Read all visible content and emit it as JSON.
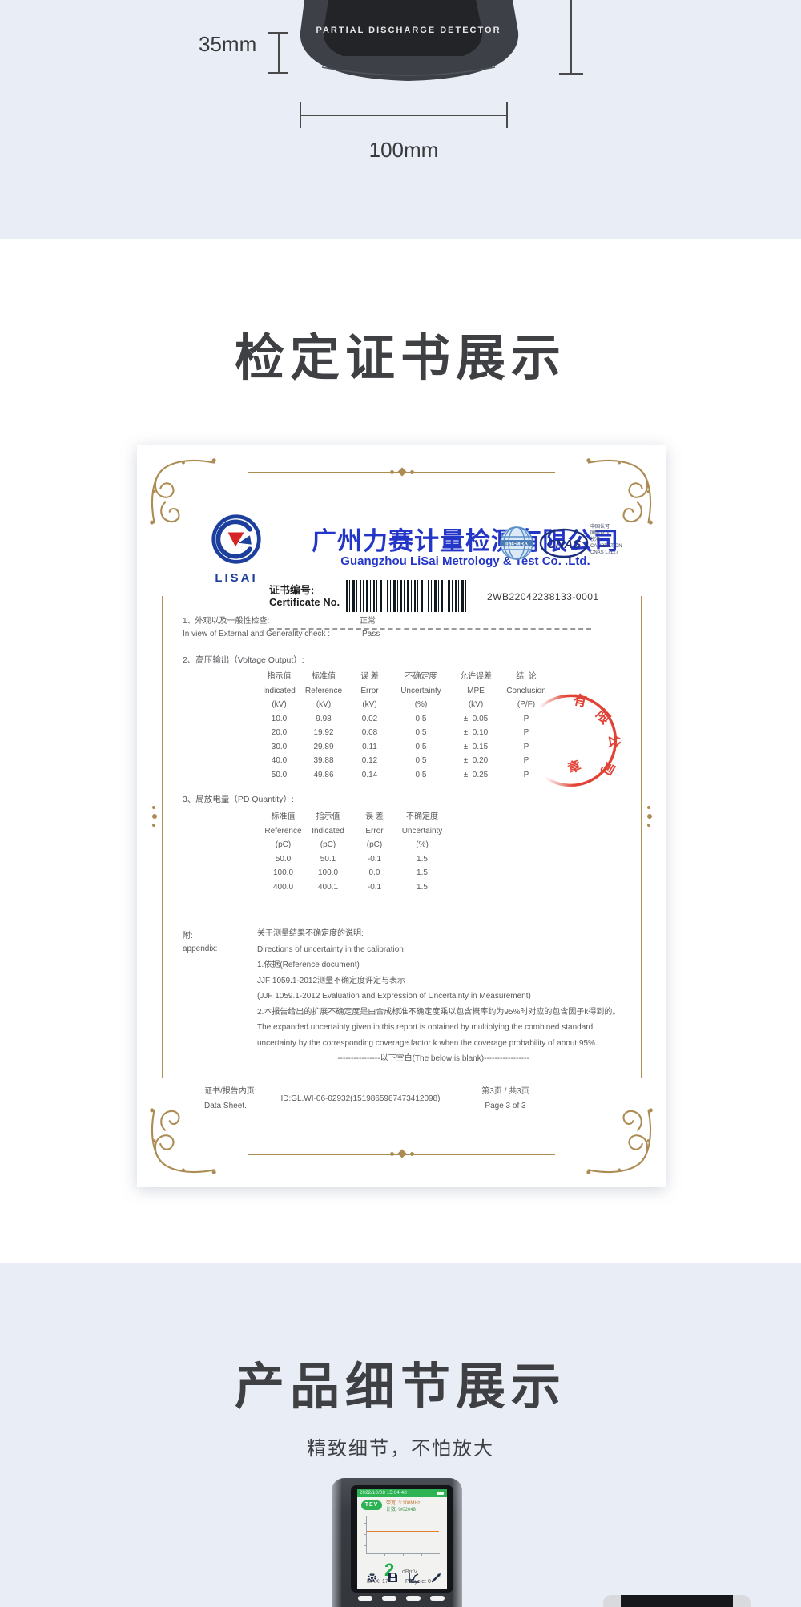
{
  "colors": {
    "section_bg": "#e9edf6",
    "accent_gold": "#ad8c54",
    "brand_blue": "#2436c7",
    "logo_blue": "#1c3f9e",
    "stamp_red": "#e03426",
    "screen_green": "#2db254",
    "orange_trace": "#e0812c",
    "title_text": "#3f4043",
    "body_text": "#5a5a5b",
    "device_dark": "#33363b"
  },
  "top_section": {
    "device_label": "PARTIAL DISCHARGE DETECTOR",
    "height_dim": "35mm",
    "width_dim": "100mm"
  },
  "cert_section": {
    "title": "检定证书展示",
    "logo_text": "LISAI",
    "company_cn": "广州力赛计量检测有限公司",
    "company_en": "Guangzhou LiSai Metrology & Test Co. .Ltd.",
    "cert_no_label_cn": "证书编号:",
    "cert_no_label_en": "Certificate No.",
    "cert_no_value": "2WB22042238133-0001",
    "ilac_label": "ilac-MRA",
    "cnas_label": "CNAS",
    "accreditation_lines": [
      "中国认可",
      "国际互认",
      "校准",
      "CALIBRATION",
      "CNAS L7127"
    ],
    "check_item_cn": "1、外观以及一般性检查:",
    "check_item_en": "In view of External and Generality check :",
    "check_result_cn": "正常",
    "check_result_en": "Pass",
    "voltage_section_title": "2、高压输出（Voltage Output）:",
    "voltage_table": {
      "headers_cn": [
        "指示值",
        "标准值",
        "误 差",
        "不确定度",
        "允许误差",
        "结  论"
      ],
      "headers_en": [
        "Indicated",
        "Reference",
        "Error",
        "Uncertainty",
        "MPE",
        "Conclusion"
      ],
      "units": [
        "(kV)",
        "(kV)",
        "(kV)",
        "(%)",
        "(kV)",
        "(P/F)"
      ],
      "rows": [
        [
          "10.0",
          "9.98",
          "0.02",
          "0.5",
          "±  0.05",
          "P"
        ],
        [
          "20.0",
          "19.92",
          "0.08",
          "0.5",
          "±  0.10",
          "P"
        ],
        [
          "30.0",
          "29.89",
          "0.11",
          "0.5",
          "±  0.15",
          "P"
        ],
        [
          "40.0",
          "39.88",
          "0.12",
          "0.5",
          "±  0.20",
          "P"
        ],
        [
          "50.0",
          "49.86",
          "0.14",
          "0.5",
          "±  0.25",
          "P"
        ]
      ]
    },
    "pd_section_title": "3、局放电量（PD Quantity）:",
    "pd_table": {
      "headers_cn": [
        "标准值",
        "指示值",
        "误 差",
        "不确定度"
      ],
      "headers_en": [
        "Reference",
        "Indicated",
        "Error",
        "Uncertainty"
      ],
      "units": [
        "(pC)",
        "(pC)",
        "(pC)",
        "(%)"
      ],
      "rows": [
        [
          "50.0",
          "50.1",
          "-0.1",
          "1.5"
        ],
        [
          "100.0",
          "100.0",
          "0.0",
          "1.5"
        ],
        [
          "400.0",
          "400.1",
          "-0.1",
          "1.5"
        ]
      ]
    },
    "appendix_label_cn": "附:",
    "appendix_label_en": "appendix:",
    "appendix_lines": [
      "关于测量结果不确定度的说明:",
      "Directions of uncertainty in the calibration",
      "1.依据(Reference document)",
      "JJF 1059.1-2012测量不确定度评定与表示",
      "(JJF 1059.1-2012 Evaluation and Expression of Uncertainty in Measurement)",
      "2.本报告给出的扩展不确定度是由合成标准不确定度乘以包含概率约为95%时对应的包含因子k得到的。",
      "The expanded uncertainty given in this report is obtained by multiplying the combined standard",
      "uncertainty by the corresponding coverage factor k when the coverage probability of about 95%."
    ],
    "blank_note": "----------------以下空白(The below is blank)-----------------",
    "footer_left_cn": "证书/报告内页:",
    "footer_left_en": "Data Sheet.",
    "footer_id": "ID:GL.WI-06-02932(1519865987473412098)",
    "footer_page_cn": "第3页 / 共3页",
    "footer_page_en": "Page 3 of 3",
    "stamp_arc_chars": [
      "有",
      "限",
      "公",
      "司"
    ],
    "stamp_center_char": "章"
  },
  "detail_section": {
    "title": "产品细节展示",
    "subtitle": "精致细节，不怕放大",
    "screen": {
      "statusbar_text": "2022/10/08 15:04:48",
      "mode_badge": "TEV",
      "info_line1": "带宽: 3:100MHz",
      "info_line2": "计数: 0/02048",
      "value": "2",
      "unit": "dBmV",
      "max_label": "MAX: 17",
      "cycle_label": "P/Cycle: 0"
    }
  }
}
